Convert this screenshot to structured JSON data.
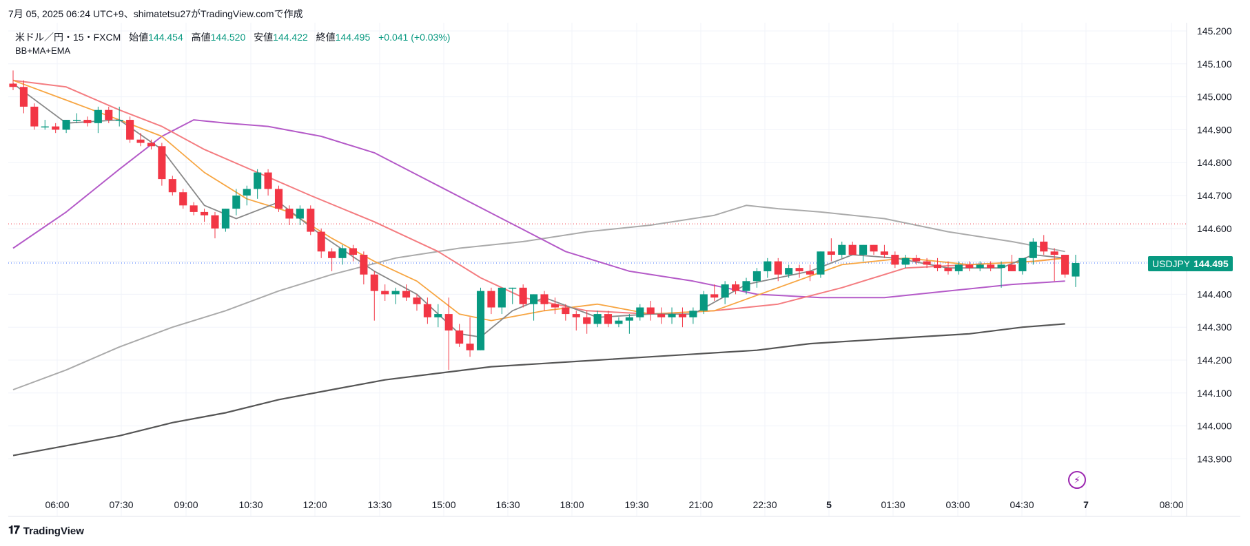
{
  "caption": "7月 05, 2025 06:24 UTC+9、shimatetsu27がTradingView.comで作成",
  "legend": {
    "symbol": "米ドル／円・15・FXCM",
    "open_label": "始値",
    "open": "144.454",
    "high_label": "高値",
    "high": "144.520",
    "low_label": "安値",
    "low": "144.422",
    "close_label": "終値",
    "close": "144.495",
    "change": "+0.041 (+0.03%)",
    "indicator": "BB+MA+EMA"
  },
  "ticker": "USDJPY",
  "last_price": "144.495",
  "brand": "TradingView",
  "colors": {
    "up": "#089981",
    "down": "#f23645",
    "grid": "#f0f3fa",
    "ma_gray": "#888888",
    "ema_orange": "#f7a541",
    "ema_red": "#f47c80",
    "purple": "#b45ac8",
    "bb_upper": "#aaaaaa",
    "long_ma": "#555555",
    "last_line": "#2962ff",
    "red_level": "#f23645"
  },
  "chart_data": {
    "type": "candlestick",
    "title": "",
    "y_ticks": [
      "145.200",
      "145.100",
      "145.000",
      "144.900",
      "144.800",
      "144.700",
      "144.600",
      "144.500",
      "144.400",
      "144.300",
      "144.200",
      "144.100",
      "144.000",
      "143.900"
    ],
    "ylim": [
      143.83,
      145.25
    ],
    "x_ticks": [
      "06:00",
      "07:30",
      "09:00",
      "10:30",
      "12:00",
      "13:30",
      "15:00",
      "16:30",
      "18:00",
      "19:30",
      "21:00",
      "22:30",
      "5",
      "01:30",
      "03:00",
      "04:30",
      "7",
      "08:00"
    ],
    "bars_total": 100,
    "red_level": 144.614,
    "last_price": 144.495,
    "candles": [
      [
        145.04,
        145.08,
        145.02,
        145.03
      ],
      [
        145.03,
        145.05,
        144.95,
        144.97
      ],
      [
        144.97,
        144.98,
        144.9,
        144.91
      ],
      [
        144.91,
        144.93,
        144.9,
        144.91
      ],
      [
        144.91,
        144.92,
        144.89,
        144.9
      ],
      [
        144.9,
        144.93,
        144.89,
        144.93
      ],
      [
        144.93,
        144.95,
        144.92,
        144.93
      ],
      [
        144.93,
        144.94,
        144.91,
        144.92
      ],
      [
        144.92,
        144.97,
        144.89,
        144.96
      ],
      [
        144.96,
        144.97,
        144.92,
        144.93
      ],
      [
        144.93,
        144.97,
        144.91,
        144.93
      ],
      [
        144.93,
        144.94,
        144.86,
        144.87
      ],
      [
        144.87,
        144.89,
        144.85,
        144.86
      ],
      [
        144.86,
        144.87,
        144.84,
        144.85
      ],
      [
        144.85,
        144.86,
        144.73,
        144.75
      ],
      [
        144.75,
        144.76,
        144.7,
        144.71
      ],
      [
        144.71,
        144.72,
        144.66,
        144.67
      ],
      [
        144.67,
        144.68,
        144.64,
        144.65
      ],
      [
        144.65,
        144.66,
        144.62,
        144.64
      ],
      [
        144.64,
        144.65,
        144.57,
        144.6
      ],
      [
        144.6,
        144.66,
        144.59,
        144.66
      ],
      [
        144.66,
        144.72,
        144.64,
        144.7
      ],
      [
        144.7,
        144.73,
        144.67,
        144.72
      ],
      [
        144.72,
        144.78,
        144.69,
        144.77
      ],
      [
        144.77,
        144.78,
        144.7,
        144.72
      ],
      [
        144.72,
        144.73,
        144.65,
        144.66
      ],
      [
        144.66,
        144.67,
        144.61,
        144.63
      ],
      [
        144.63,
        144.67,
        144.61,
        144.66
      ],
      [
        144.66,
        144.67,
        144.58,
        144.59
      ],
      [
        144.59,
        144.6,
        144.51,
        144.53
      ],
      [
        144.53,
        144.54,
        144.47,
        144.51
      ],
      [
        144.51,
        144.55,
        144.49,
        144.54
      ],
      [
        144.54,
        144.55,
        144.5,
        144.52
      ],
      [
        144.52,
        144.53,
        144.43,
        144.46
      ],
      [
        144.46,
        144.47,
        144.32,
        144.41
      ],
      [
        144.41,
        144.43,
        144.38,
        144.4
      ],
      [
        144.4,
        144.42,
        144.37,
        144.41
      ],
      [
        144.41,
        144.43,
        144.38,
        144.39
      ],
      [
        144.39,
        144.4,
        144.35,
        144.37
      ],
      [
        144.37,
        144.39,
        144.31,
        144.33
      ],
      [
        144.33,
        144.37,
        144.3,
        144.34
      ],
      [
        144.34,
        144.39,
        144.17,
        144.29
      ],
      [
        144.29,
        144.31,
        144.24,
        144.25
      ],
      [
        144.25,
        144.33,
        144.21,
        144.23
      ],
      [
        144.23,
        144.42,
        144.23,
        144.41
      ],
      [
        144.41,
        144.42,
        144.34,
        144.36
      ],
      [
        144.36,
        144.42,
        144.34,
        144.42
      ],
      [
        144.42,
        144.42,
        144.37,
        144.42
      ],
      [
        144.42,
        144.43,
        144.36,
        144.37
      ],
      [
        144.37,
        144.4,
        144.32,
        144.4
      ],
      [
        144.4,
        144.41,
        144.35,
        144.37
      ],
      [
        144.37,
        144.39,
        144.34,
        144.36
      ],
      [
        144.36,
        144.37,
        144.32,
        144.34
      ],
      [
        144.34,
        144.35,
        144.29,
        144.33
      ],
      [
        144.33,
        144.35,
        144.28,
        144.31
      ],
      [
        144.31,
        144.35,
        144.3,
        144.34
      ],
      [
        144.34,
        144.35,
        144.3,
        144.31
      ],
      [
        144.31,
        144.33,
        144.3,
        144.32
      ],
      [
        144.32,
        144.34,
        144.28,
        144.33
      ],
      [
        144.33,
        144.37,
        144.32,
        144.36
      ],
      [
        144.36,
        144.38,
        144.32,
        144.34
      ],
      [
        144.34,
        144.36,
        144.31,
        144.33
      ],
      [
        144.33,
        144.36,
        144.31,
        144.34
      ],
      [
        144.34,
        144.36,
        144.3,
        144.33
      ],
      [
        144.33,
        144.36,
        144.31,
        144.35
      ],
      [
        144.35,
        144.41,
        144.34,
        144.4
      ],
      [
        144.4,
        144.43,
        144.38,
        144.39
      ],
      [
        144.39,
        144.44,
        144.37,
        144.43
      ],
      [
        144.43,
        144.44,
        144.4,
        144.41
      ],
      [
        144.41,
        144.45,
        144.4,
        144.44
      ],
      [
        144.44,
        144.48,
        144.42,
        144.47
      ],
      [
        144.47,
        144.51,
        144.45,
        144.5
      ],
      [
        144.5,
        144.51,
        144.44,
        144.46
      ],
      [
        144.46,
        144.49,
        144.45,
        144.48
      ],
      [
        144.48,
        144.49,
        144.45,
        144.47
      ],
      [
        144.47,
        144.49,
        144.44,
        144.46
      ],
      [
        144.46,
        144.53,
        144.45,
        144.53
      ],
      [
        144.53,
        144.57,
        144.5,
        144.52
      ],
      [
        144.52,
        144.56,
        144.51,
        144.55
      ],
      [
        144.55,
        144.56,
        144.52,
        144.52
      ],
      [
        144.52,
        144.55,
        144.5,
        144.55
      ],
      [
        144.55,
        144.55,
        144.52,
        144.53
      ],
      [
        144.53,
        144.55,
        144.51,
        144.52
      ],
      [
        144.52,
        144.53,
        144.48,
        144.49
      ],
      [
        144.49,
        144.52,
        144.48,
        144.51
      ],
      [
        144.51,
        144.52,
        144.49,
        144.5
      ],
      [
        144.5,
        144.51,
        144.48,
        144.49
      ],
      [
        144.49,
        144.51,
        144.47,
        144.48
      ],
      [
        144.48,
        144.5,
        144.46,
        144.47
      ],
      [
        144.47,
        144.5,
        144.46,
        144.49
      ],
      [
        144.49,
        144.5,
        144.47,
        144.48
      ],
      [
        144.48,
        144.5,
        144.47,
        144.49
      ],
      [
        144.49,
        144.5,
        144.47,
        144.48
      ],
      [
        144.48,
        144.5,
        144.42,
        144.49
      ],
      [
        144.49,
        144.52,
        144.47,
        144.47
      ],
      [
        144.47,
        144.51,
        144.46,
        144.51
      ],
      [
        144.51,
        144.57,
        144.49,
        144.56
      ],
      [
        144.56,
        144.58,
        144.52,
        144.53
      ],
      [
        144.53,
        144.54,
        144.44,
        144.52
      ],
      [
        144.52,
        144.52,
        144.45,
        144.46
      ],
      [
        144.454,
        144.52,
        144.422,
        144.495
      ]
    ],
    "lines": {
      "ma_gray": [
        [
          0,
          145.04
        ],
        [
          5,
          144.92
        ],
        [
          10,
          144.93
        ],
        [
          14,
          144.84
        ],
        [
          18,
          144.67
        ],
        [
          21,
          144.63
        ],
        [
          25,
          144.68
        ],
        [
          29,
          144.58
        ],
        [
          34,
          144.47
        ],
        [
          38,
          144.4
        ],
        [
          42,
          144.28
        ],
        [
          44,
          144.27
        ],
        [
          47,
          144.35
        ],
        [
          50,
          144.39
        ],
        [
          55,
          144.33
        ],
        [
          60,
          144.34
        ],
        [
          64,
          144.34
        ],
        [
          69,
          144.43
        ],
        [
          75,
          144.47
        ],
        [
          79,
          144.52
        ],
        [
          83,
          144.51
        ],
        [
          88,
          144.48
        ],
        [
          93,
          144.48
        ],
        [
          96,
          144.52
        ],
        [
          99,
          144.51
        ]
      ],
      "ema_orange": [
        [
          0,
          145.05
        ],
        [
          5,
          144.99
        ],
        [
          10,
          144.93
        ],
        [
          14,
          144.88
        ],
        [
          18,
          144.77
        ],
        [
          22,
          144.69
        ],
        [
          26,
          144.65
        ],
        [
          30,
          144.57
        ],
        [
          34,
          144.5
        ],
        [
          38,
          144.44
        ],
        [
          42,
          144.34
        ],
        [
          45,
          144.32
        ],
        [
          50,
          144.35
        ],
        [
          55,
          144.37
        ],
        [
          60,
          144.34
        ],
        [
          66,
          144.35
        ],
        [
          72,
          144.42
        ],
        [
          78,
          144.49
        ],
        [
          84,
          144.51
        ],
        [
          90,
          144.49
        ],
        [
          96,
          144.5
        ],
        [
          99,
          144.51
        ]
      ],
      "ema_red": [
        [
          0,
          145.05
        ],
        [
          5,
          145.03
        ],
        [
          10,
          144.96
        ],
        [
          14,
          144.91
        ],
        [
          18,
          144.84
        ],
        [
          23,
          144.77
        ],
        [
          28,
          144.7
        ],
        [
          34,
          144.62
        ],
        [
          40,
          144.53
        ],
        [
          44,
          144.45
        ],
        [
          48,
          144.39
        ],
        [
          54,
          144.35
        ],
        [
          60,
          144.34
        ],
        [
          66,
          144.35
        ],
        [
          72,
          144.37
        ],
        [
          78,
          144.42
        ],
        [
          84,
          144.48
        ],
        [
          90,
          144.49
        ],
        [
          96,
          144.5
        ],
        [
          99,
          144.51
        ]
      ],
      "purple": [
        [
          0,
          144.54
        ],
        [
          5,
          144.65
        ],
        [
          10,
          144.78
        ],
        [
          14,
          144.88
        ],
        [
          17,
          144.93
        ],
        [
          20,
          144.92
        ],
        [
          24,
          144.91
        ],
        [
          29,
          144.88
        ],
        [
          34,
          144.83
        ],
        [
          40,
          144.73
        ],
        [
          46,
          144.63
        ],
        [
          52,
          144.53
        ],
        [
          58,
          144.47
        ],
        [
          64,
          144.44
        ],
        [
          70,
          144.4
        ],
        [
          76,
          144.39
        ],
        [
          82,
          144.39
        ],
        [
          88,
          144.41
        ],
        [
          94,
          144.43
        ],
        [
          99,
          144.44
        ]
      ],
      "bb_upper": [
        [
          0,
          144.11
        ],
        [
          5,
          144.17
        ],
        [
          10,
          144.24
        ],
        [
          15,
          144.3
        ],
        [
          20,
          144.35
        ],
        [
          25,
          144.41
        ],
        [
          30,
          144.46
        ],
        [
          36,
          144.51
        ],
        [
          42,
          144.54
        ],
        [
          48,
          144.56
        ],
        [
          54,
          144.59
        ],
        [
          60,
          144.61
        ],
        [
          66,
          144.64
        ],
        [
          69,
          144.67
        ],
        [
          72,
          144.66
        ],
        [
          76,
          144.65
        ],
        [
          82,
          144.63
        ],
        [
          88,
          144.59
        ],
        [
          94,
          144.56
        ],
        [
          99,
          144.53
        ]
      ],
      "long_ma": [
        [
          0,
          143.91
        ],
        [
          5,
          143.94
        ],
        [
          10,
          143.97
        ],
        [
          15,
          144.01
        ],
        [
          20,
          144.04
        ],
        [
          25,
          144.08
        ],
        [
          30,
          144.11
        ],
        [
          35,
          144.14
        ],
        [
          40,
          144.16
        ],
        [
          45,
          144.18
        ],
        [
          50,
          144.19
        ],
        [
          55,
          144.2
        ],
        [
          60,
          144.21
        ],
        [
          65,
          144.22
        ],
        [
          70,
          144.23
        ],
        [
          75,
          144.25
        ],
        [
          80,
          144.26
        ],
        [
          85,
          144.27
        ],
        [
          90,
          144.28
        ],
        [
          95,
          144.3
        ],
        [
          99,
          144.31
        ]
      ]
    }
  }
}
